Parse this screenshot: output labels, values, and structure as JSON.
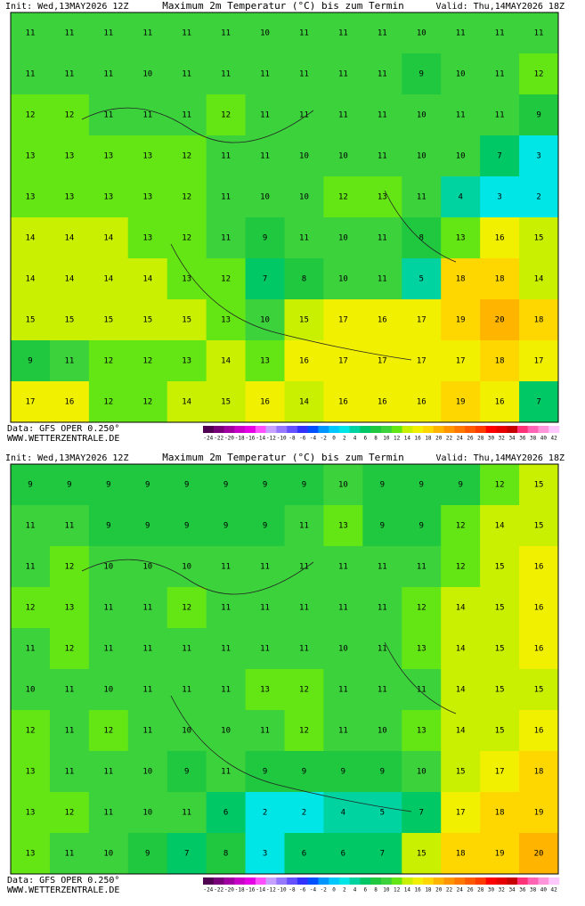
{
  "panels": [
    {
      "header": {
        "init": "Init: Wed,13MAY2026 12Z",
        "title": "Maximum 2m Temperatur (°C) bis zum Termin",
        "valid": "Valid: Thu,14MAY2026 18Z"
      },
      "grid": [
        [
          11,
          11,
          11,
          11,
          11,
          11,
          10,
          11,
          11,
          11,
          10,
          11,
          11,
          11
        ],
        [
          11,
          11,
          11,
          10,
          11,
          11,
          11,
          11,
          11,
          11,
          9,
          10,
          11,
          12
        ],
        [
          12,
          12,
          11,
          11,
          11,
          12,
          11,
          11,
          11,
          11,
          10,
          11,
          11,
          9
        ],
        [
          13,
          13,
          13,
          13,
          12,
          11,
          11,
          10,
          10,
          11,
          10,
          10,
          7,
          3
        ],
        [
          13,
          13,
          13,
          13,
          12,
          11,
          10,
          10,
          12,
          13,
          11,
          4,
          3,
          2
        ],
        [
          14,
          14,
          14,
          13,
          12,
          11,
          9,
          11,
          10,
          11,
          8,
          13,
          16,
          15
        ],
        [
          14,
          14,
          14,
          14,
          13,
          12,
          7,
          8,
          10,
          11,
          5,
          18,
          18,
          14
        ],
        [
          15,
          15,
          15,
          15,
          15,
          13,
          10,
          15,
          17,
          16,
          17,
          19,
          20,
          18
        ],
        [
          9,
          11,
          12,
          12,
          13,
          14,
          13,
          16,
          17,
          17,
          17,
          17,
          18,
          17
        ],
        [
          17,
          16,
          12,
          12,
          14,
          15,
          16,
          14,
          16,
          16,
          16,
          19,
          16,
          7
        ]
      ],
      "footer": {
        "data": "Data: GFS OPER 0.250°",
        "site": "WWW.WETTERZENTRALE.DE"
      }
    },
    {
      "header": {
        "init": "Init: Wed,13MAY2026 12Z",
        "title": "Maximum 2m Temperatur (°C) bis zum Termin",
        "valid": "Valid: Thu,14MAY2026 18Z"
      },
      "grid": [
        [
          9,
          9,
          9,
          9,
          9,
          9,
          9,
          9,
          10,
          9,
          9,
          9,
          12,
          15
        ],
        [
          11,
          11,
          9,
          9,
          9,
          9,
          9,
          11,
          13,
          9,
          9,
          12,
          14,
          15
        ],
        [
          11,
          12,
          10,
          10,
          10,
          11,
          11,
          11,
          11,
          11,
          11,
          12,
          15,
          16
        ],
        [
          12,
          13,
          11,
          11,
          12,
          11,
          11,
          11,
          11,
          11,
          12,
          14,
          15,
          16
        ],
        [
          11,
          12,
          11,
          11,
          11,
          11,
          11,
          11,
          10,
          11,
          13,
          14,
          15,
          16
        ],
        [
          10,
          11,
          10,
          11,
          11,
          11,
          13,
          12,
          11,
          11,
          11,
          14,
          15,
          15
        ],
        [
          12,
          11,
          12,
          11,
          10,
          10,
          11,
          12,
          11,
          10,
          13,
          14,
          15,
          16
        ],
        [
          13,
          11,
          11,
          10,
          9,
          11,
          9,
          9,
          9,
          9,
          10,
          15,
          17,
          18
        ],
        [
          13,
          12,
          11,
          10,
          11,
          6,
          2,
          2,
          4,
          5,
          7,
          17,
          18,
          19
        ],
        [
          13,
          11,
          10,
          9,
          7,
          8,
          3,
          6,
          6,
          7,
          15,
          18,
          19,
          20
        ]
      ],
      "footer": {
        "data": "Data: GFS OPER 0.250°",
        "site": "WWW.WETTERZENTRALE.DE"
      }
    }
  ],
  "scale": {
    "labels": [
      -24,
      -22,
      -20,
      -18,
      -16,
      -14,
      -12,
      -10,
      -8,
      -6,
      -4,
      -2,
      0,
      2,
      4,
      6,
      8,
      10,
      12,
      14,
      16,
      18,
      20,
      22,
      24,
      26,
      28,
      30,
      32,
      34,
      36,
      38,
      40,
      42
    ],
    "colors": [
      "#500050",
      "#780078",
      "#a000a0",
      "#c800c8",
      "#e600e6",
      "#ff50ff",
      "#c8a0ff",
      "#9678ff",
      "#6450ff",
      "#3232ff",
      "#0050ff",
      "#0096ff",
      "#00c8ff",
      "#00e6e6",
      "#00d2a0",
      "#00c864",
      "#20c840",
      "#3cd23c",
      "#64e614",
      "#c8f000",
      "#f0f000",
      "#ffd700",
      "#ffb400",
      "#ff9600",
      "#ff7800",
      "#ff5a00",
      "#ff3c00",
      "#ff0000",
      "#e60000",
      "#c80000",
      "#ff3278",
      "#ff64b4",
      "#ff96dc",
      "#ffc8ff"
    ]
  }
}
